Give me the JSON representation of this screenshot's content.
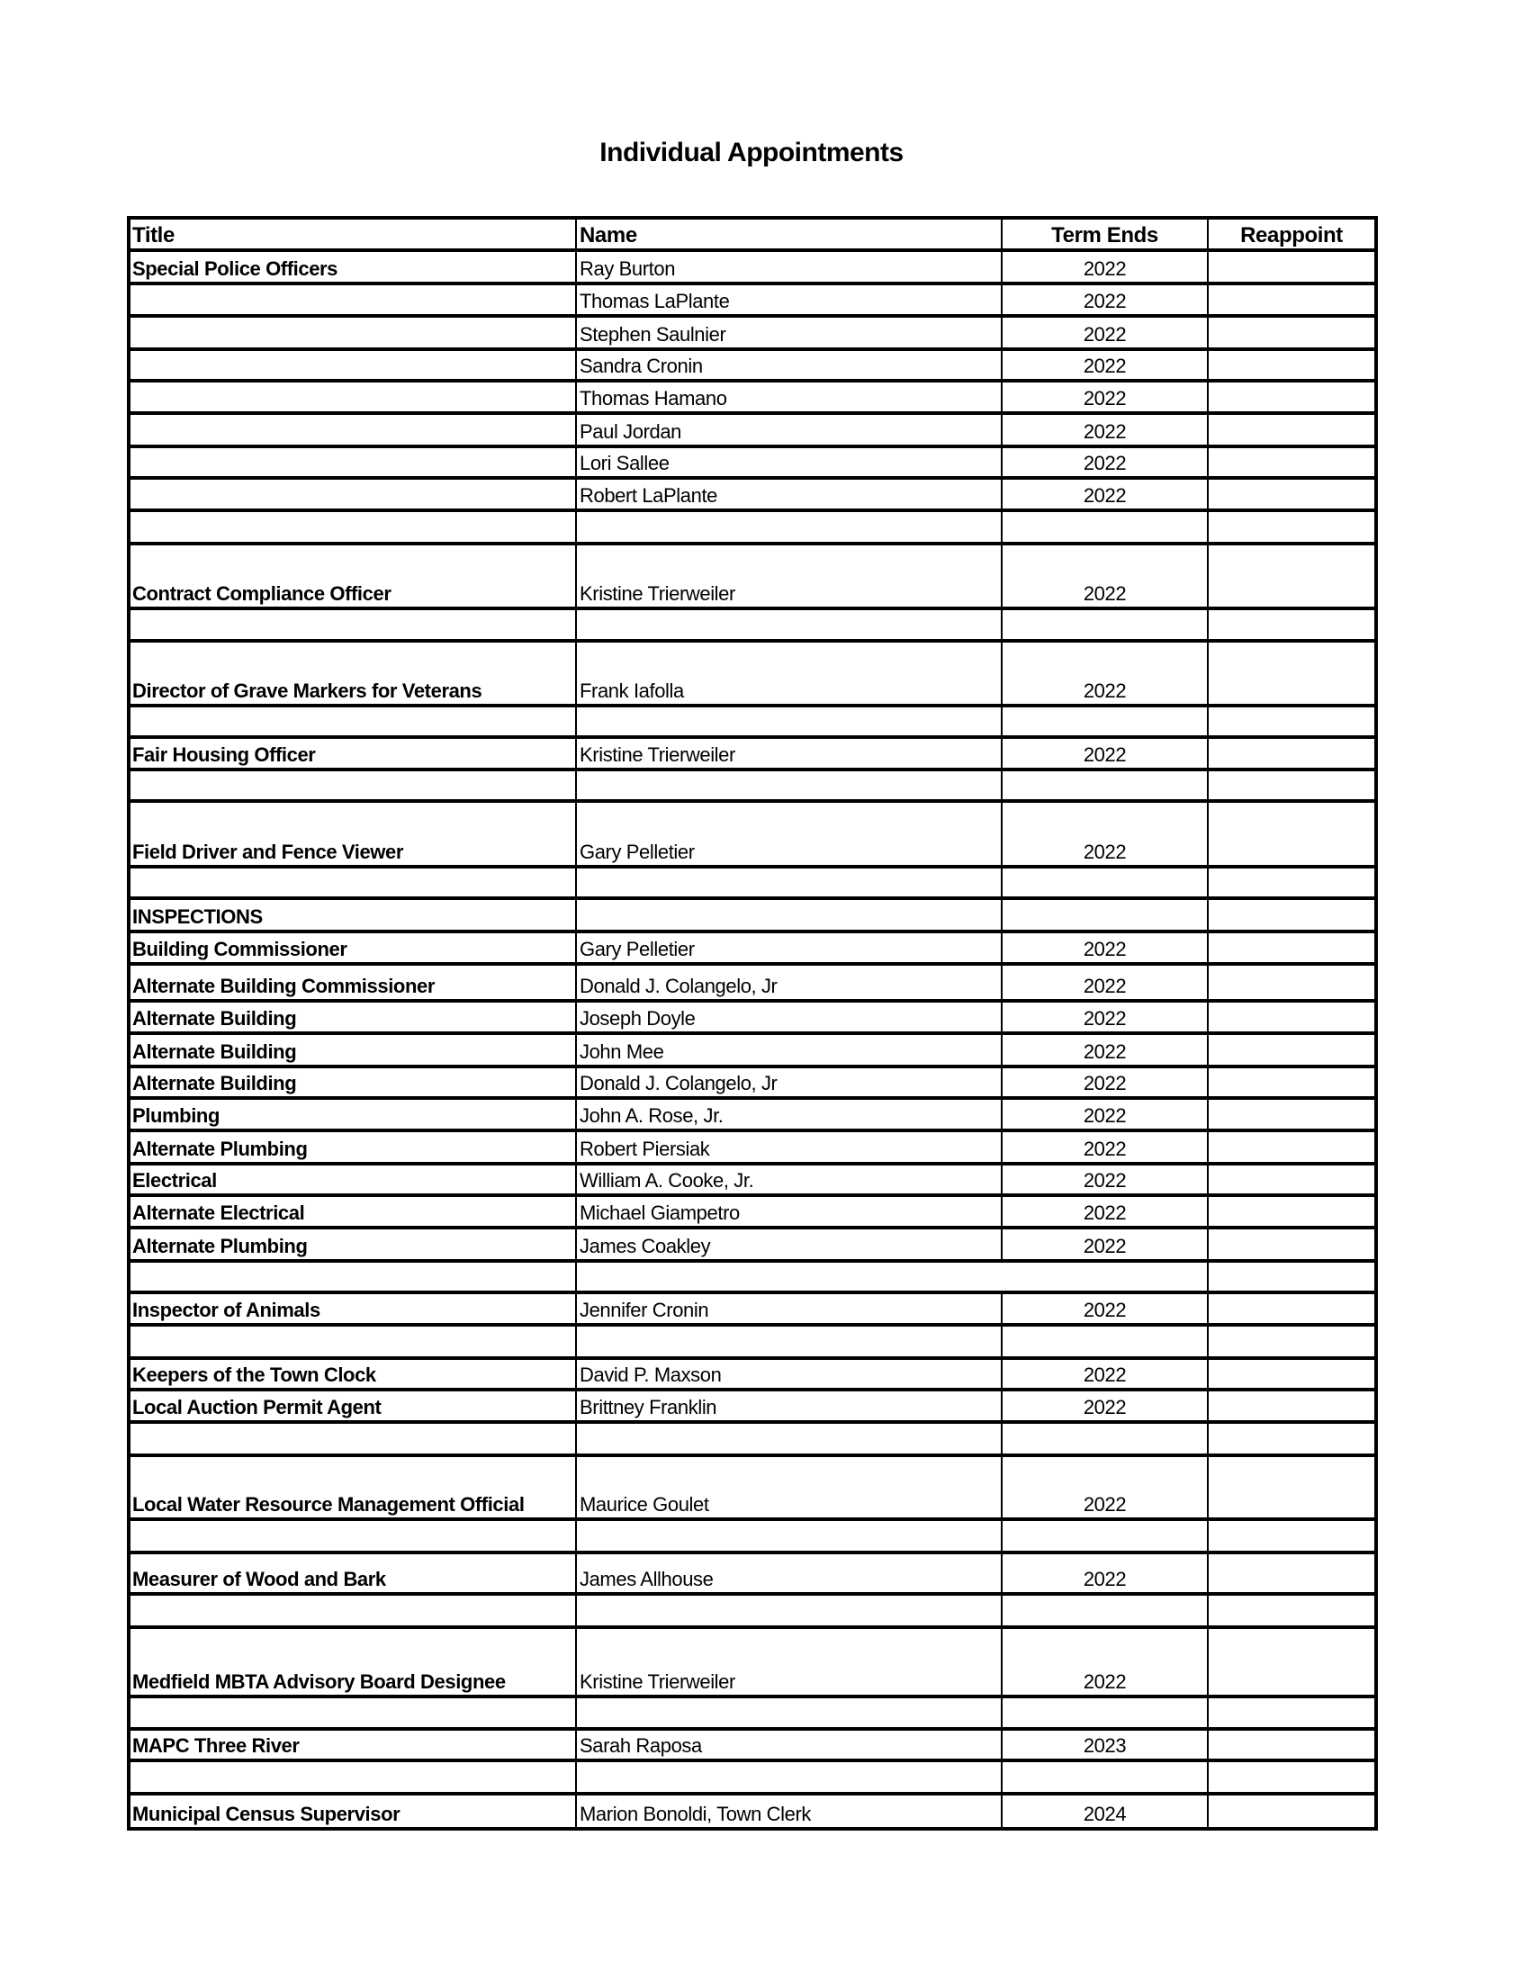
{
  "title": "Individual Appointments",
  "headers": {
    "title": "Title",
    "name": "Name",
    "term": "Term Ends",
    "reappoint": "Reappoint"
  },
  "rows": [
    {
      "title": "Special Police Officers",
      "name": "Ray Burton",
      "term": "2022"
    },
    {
      "title": "",
      "name": "Thomas LaPlante",
      "term": "2022"
    },
    {
      "title": "",
      "name": "Stephen Saulnier",
      "term": "2022"
    },
    {
      "title": "",
      "name": "Sandra Cronin",
      "term": "2022"
    },
    {
      "title": "",
      "name": "Thomas Hamano",
      "term": "2022"
    },
    {
      "title": "",
      "name": "Paul Jordan",
      "term": "2022"
    },
    {
      "title": "",
      "name": "Lori Sallee",
      "term": "2022"
    },
    {
      "title": "",
      "name": "Robert LaPlante",
      "term": "2022"
    },
    {
      "title": "",
      "name": "",
      "term": ""
    },
    {
      "title": "Contract Compliance Officer",
      "name": "Kristine Trierweiler",
      "term": "2022"
    },
    {
      "title": "",
      "name": "",
      "term": ""
    },
    {
      "title": "Director of Grave Markers for Veterans",
      "name": "Frank Iafolla",
      "term": "2022"
    },
    {
      "title": "",
      "name": "",
      "term": ""
    },
    {
      "title": "Fair Housing Officer",
      "name": "Kristine Trierweiler",
      "term": "2022"
    },
    {
      "title": "",
      "name": "",
      "term": ""
    },
    {
      "title": "Field Driver and Fence Viewer",
      "name": "Gary Pelletier",
      "term": "2022"
    },
    {
      "title": "",
      "name": "",
      "term": ""
    },
    {
      "title": "INSPECTIONS",
      "name": "",
      "term": ""
    },
    {
      "title": "Building Commissioner",
      "name": "Gary Pelletier",
      "term": "2022"
    },
    {
      "title": "Alternate Building Commissioner",
      "name": "Donald J. Colangelo, Jr",
      "term": "2022"
    },
    {
      "title": "Alternate Building",
      "name": "Joseph Doyle",
      "term": "2022"
    },
    {
      "title": "Alternate Building",
      "name": "John Mee",
      "term": "2022"
    },
    {
      "title": "Alternate Building",
      "name": "Donald J. Colangelo, Jr",
      "term": "2022"
    },
    {
      "title": "Plumbing",
      "name": "John A. Rose, Jr.",
      "term": "2022"
    },
    {
      "title": "Alternate Plumbing",
      "name": "Robert Piersiak",
      "term": "2022"
    },
    {
      "title": "Electrical",
      "name": "William A. Cooke, Jr.",
      "term": "2022"
    },
    {
      "title": "Alternate Electrical",
      "name": "Michael Giampetro",
      "term": "2022"
    },
    {
      "title": "Alternate Plumbing",
      "name": "James Coakley",
      "term": "2022"
    },
    {
      "title": "",
      "name": "",
      "term": ""
    },
    {
      "title": "Inspector of Animals",
      "name": "Jennifer Cronin",
      "term": "2022"
    },
    {
      "title": "",
      "name": "",
      "term": ""
    },
    {
      "title": "Keepers of the Town Clock",
      "name": "David P. Maxson",
      "term": "2022"
    },
    {
      "title": "Local Auction Permit Agent",
      "name": "Brittney Franklin",
      "term": "2022"
    },
    {
      "title": "",
      "name": "",
      "term": ""
    },
    {
      "title": "Local Water Resource Management Official",
      "name": "Maurice Goulet",
      "term": "2022"
    },
    {
      "title": "",
      "name": "",
      "term": ""
    },
    {
      "title": "Measurer of Wood and Bark",
      "name": "James Allhouse",
      "term": "2022"
    },
    {
      "title": "",
      "name": "",
      "term": ""
    },
    {
      "title": "Medfield MBTA Advisory Board Designee",
      "name": "Kristine Trierweiler",
      "term": "2022"
    },
    {
      "title": "",
      "name": "",
      "term": ""
    },
    {
      "title": "MAPC Three River",
      "name": "Sarah Raposa",
      "term": "2023"
    },
    {
      "title": "",
      "name": "",
      "term": ""
    },
    {
      "title": "Municipal Census Supervisor",
      "name": "Marion Bonoldi, Town Clerk",
      "term": "2024"
    }
  ]
}
